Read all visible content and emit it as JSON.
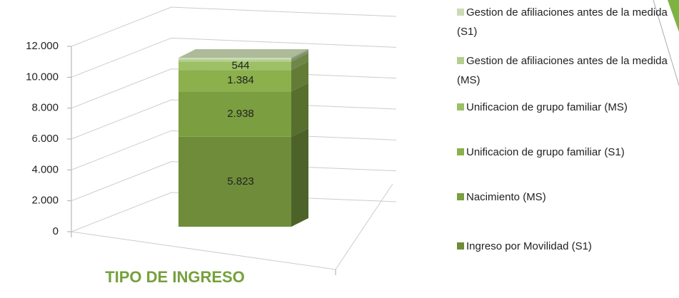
{
  "chart_data": {
    "type": "bar3d_stacked",
    "title": "TIPO DE INGRESO",
    "categories": [
      null
    ],
    "series": [
      {
        "name": "Ingreso por Movilidad (S1)",
        "color": "#6e8c3a",
        "values": [
          5823
        ],
        "value_labels": [
          "5.823"
        ]
      },
      {
        "name": "Nacimiento (MS)",
        "color": "#7b9e40",
        "values": [
          2938
        ],
        "value_labels": [
          "2.938"
        ]
      },
      {
        "name": "Unificacion de grupo familiar (S1)",
        "color": "#8cb04c",
        "values": [
          1384
        ],
        "value_labels": [
          "1.384"
        ]
      },
      {
        "name": "Unificacion de grupo familiar (MS)",
        "color": "#9dc066",
        "values": [
          544
        ],
        "value_labels": [
          "544"
        ]
      },
      {
        "name": "Gestion de afiliaciones antes de la medida (MS)",
        "color": "#b4cf90",
        "values": [
          150
        ]
      },
      {
        "name": "Gestion de afiliaciones antes de la medida (S1)",
        "color": "#cbdcb5",
        "values": [
          100
        ]
      }
    ],
    "ylim": [
      0,
      12000
    ],
    "yticks": [
      0,
      {
        "value": 2000,
        "label": "2.000"
      },
      {
        "value": 4000,
        "label": "4.000"
      },
      {
        "value": 6000,
        "label": "6.000"
      },
      {
        "value": 8000,
        "label": "8.000"
      },
      {
        "value": 10000,
        "label": "10.000"
      },
      {
        "value": 12000,
        "label": "12.000"
      }
    ],
    "grid": true
  }
}
